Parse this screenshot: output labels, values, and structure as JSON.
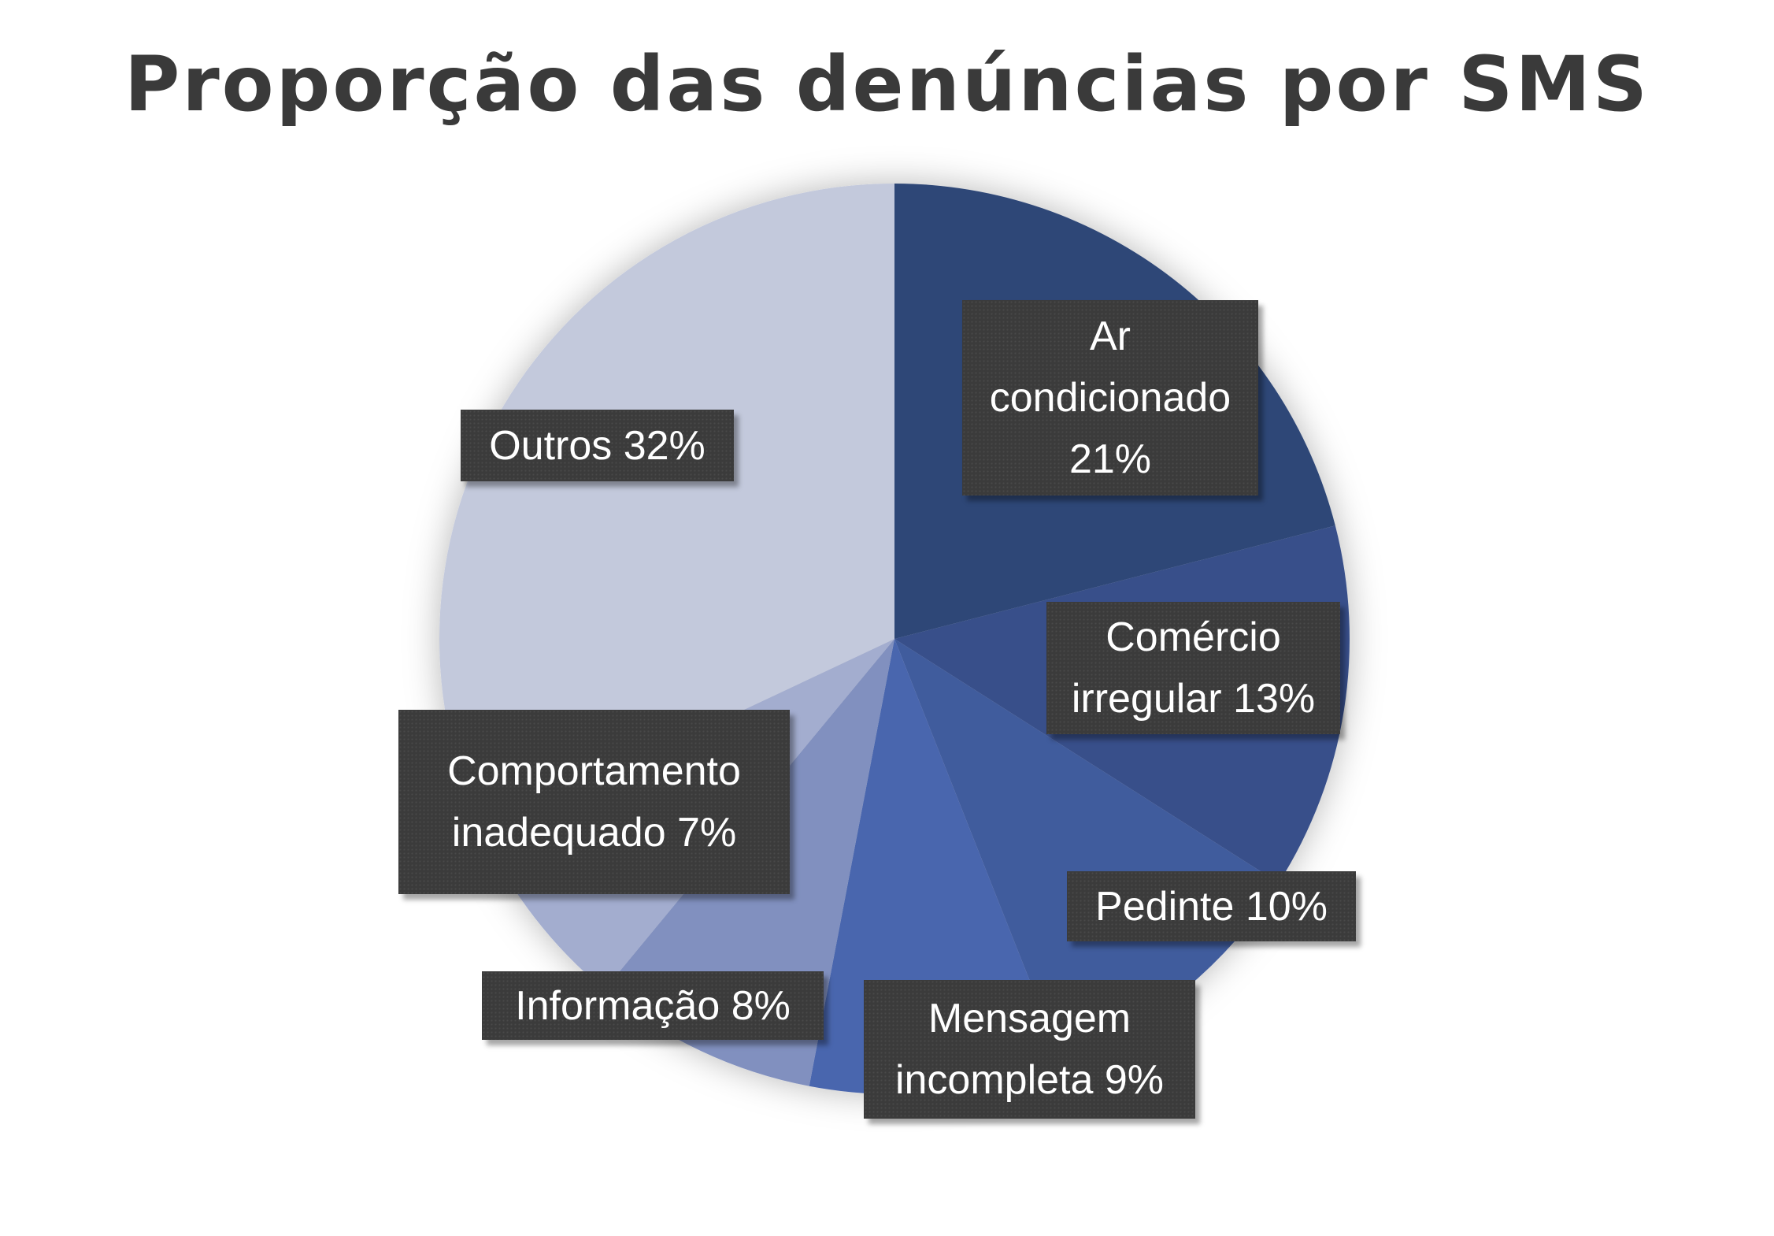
{
  "chart_data": {
    "type": "pie",
    "title": "Proporção das denúncias por SMS",
    "slices": [
      {
        "name": "Ar condicionado",
        "value": 21,
        "label": "Ar\ncondicionado\n21%",
        "color": "#2f4777"
      },
      {
        "name": "Comércio irregular",
        "value": 13,
        "label": "Comércio\nirregular 13%",
        "color": "#37508a"
      },
      {
        "name": "Pedinte",
        "value": 10,
        "label": "Pedinte  10%",
        "color": "#415b9d"
      },
      {
        "name": "Mensagem incompleta",
        "value": 9,
        "label": "Mensagem\nincompleta 9%",
        "color": "#4a66ae"
      },
      {
        "name": "Informação",
        "value": 8,
        "label": "Informação  8%",
        "color": "#8190bf"
      },
      {
        "name": "Comportamento inadequado",
        "value": 7,
        "label": "Comportamento\ninadequado  7%",
        "color": "#a3adcf"
      },
      {
        "name": "Outros",
        "value": 32,
        "label": "Outros  32%",
        "color": "#c3c9dc"
      }
    ]
  }
}
